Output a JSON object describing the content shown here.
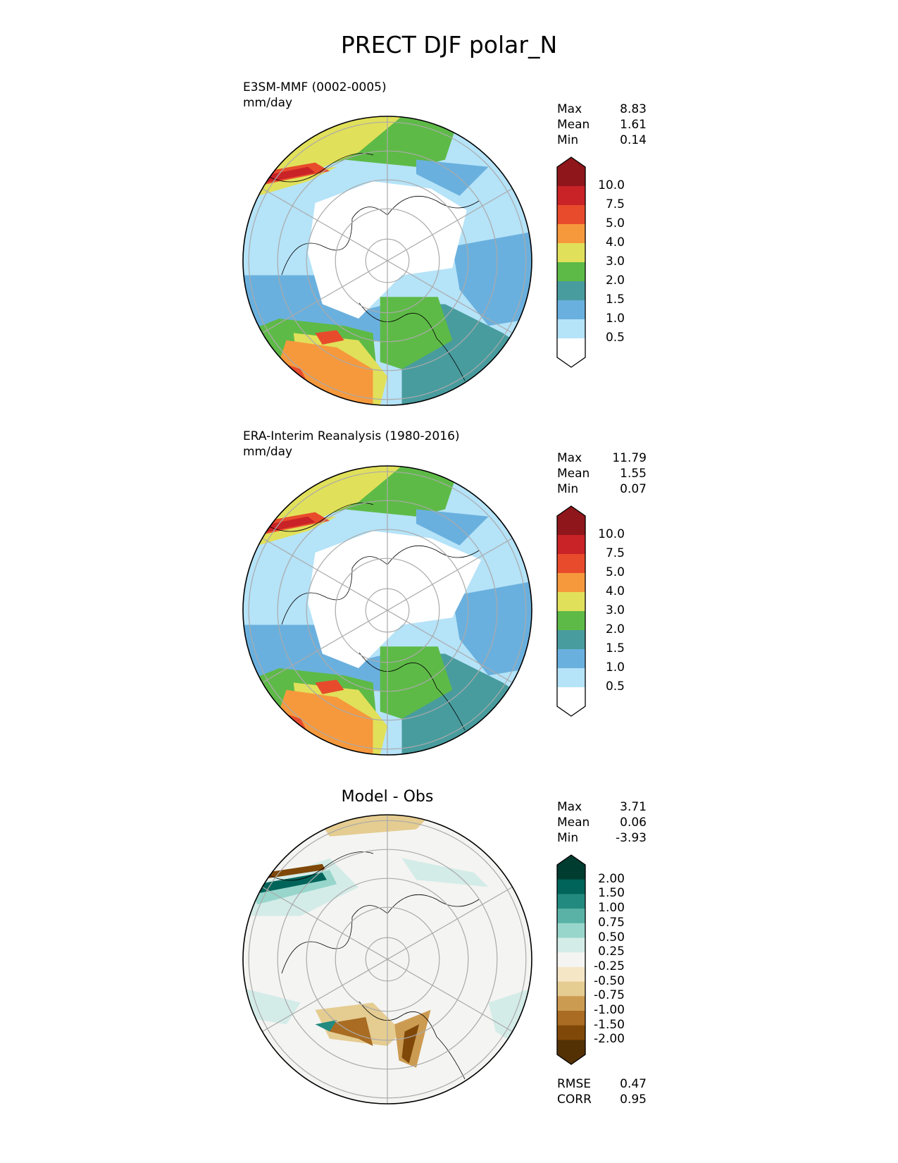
{
  "title": "PRECT DJF polar_N",
  "chart_data": [
    {
      "type": "heatmap",
      "projection": "north-polar-stereographic",
      "title": "E3SM-MMF (0002-0005)",
      "units": "mm/day",
      "stats": {
        "max_label": "Max",
        "max": "8.83",
        "mean_label": "Mean",
        "mean": "1.61",
        "min_label": "Min",
        "min": "0.14"
      },
      "colorbar": {
        "ticks": [
          "10.0",
          "7.5",
          "5.0",
          "4.0",
          "3.0",
          "2.0",
          "1.5",
          "1.0",
          "0.5"
        ],
        "colors": [
          "#8f161a",
          "#c92227",
          "#e84b2c",
          "#f6993d",
          "#e1e05a",
          "#5eba47",
          "#489c9e",
          "#6ab0de",
          "#b5e3f8",
          "#ffffff"
        ]
      }
    },
    {
      "type": "heatmap",
      "projection": "north-polar-stereographic",
      "title": "ERA-Interim Reanalysis (1980-2016)",
      "units": "mm/day",
      "stats": {
        "max_label": "Max",
        "max": "11.79",
        "mean_label": "Mean",
        "mean": "1.55",
        "min_label": "Min",
        "min": "0.07"
      },
      "colorbar": {
        "ticks": [
          "10.0",
          "7.5",
          "5.0",
          "4.0",
          "3.0",
          "2.0",
          "1.5",
          "1.0",
          "0.5"
        ],
        "colors": [
          "#8f161a",
          "#c92227",
          "#e84b2c",
          "#f6993d",
          "#e1e05a",
          "#5eba47",
          "#489c9e",
          "#6ab0de",
          "#b5e3f8",
          "#ffffff"
        ]
      }
    },
    {
      "type": "heatmap",
      "projection": "north-polar-stereographic",
      "title": "Model - Obs",
      "stats": {
        "max_label": "Max",
        "max": "3.71",
        "mean_label": "Mean",
        "mean": "0.06",
        "min_label": "Min",
        "min": "-3.93"
      },
      "metrics": {
        "rmse_label": "RMSE",
        "rmse": "0.47",
        "corr_label": "CORR",
        "corr": "0.95"
      },
      "colorbar": {
        "ticks": [
          "2.00",
          "1.50",
          "1.00",
          "0.75",
          "0.50",
          "0.25",
          "-0.25",
          "-0.50",
          "-0.75",
          "-1.00",
          "-1.50",
          "-2.00"
        ],
        "colors": [
          "#013c30",
          "#01645a",
          "#238a80",
          "#5ab2a7",
          "#98d6cc",
          "#d4ece8",
          "#f4f4f2",
          "#f5e6c6",
          "#e5cc91",
          "#cc9b52",
          "#a96c22",
          "#7f4808",
          "#543005"
        ]
      }
    }
  ]
}
